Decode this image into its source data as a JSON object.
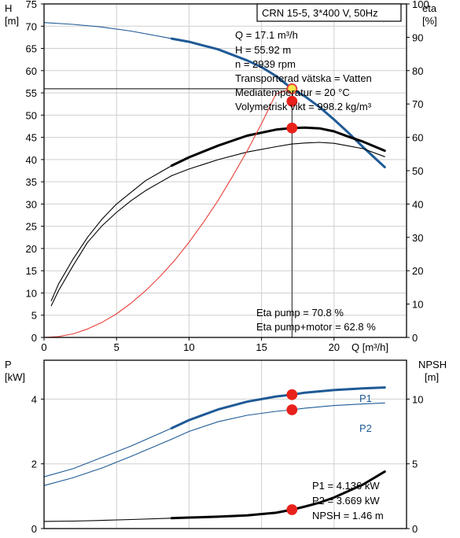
{
  "chart_data": [
    {
      "type": "line",
      "title": "CRN 15-5, 3*400 V, 50Hz",
      "y_axis_left": {
        "label_top": "H",
        "label_bottom": "[m]",
        "min": 0,
        "max": 75,
        "ticks": [
          "0",
          "5",
          "10",
          "15",
          "20",
          "25",
          "30",
          "35",
          "40",
          "45",
          "50",
          "55",
          "60",
          "65",
          "70",
          "75"
        ]
      },
      "y_axis_right": {
        "label_top": "eta",
        "label_bottom": "[%]",
        "min": 0,
        "max": 100,
        "ticks": [
          "0",
          "10",
          "20",
          "30",
          "40",
          "50",
          "60",
          "70",
          "80",
          "90",
          "100"
        ]
      },
      "x_axis": {
        "label": "Q [m³/h]",
        "min": 0,
        "max": 25,
        "ticks": [
          "0",
          "5",
          "10",
          "15",
          "20"
        ]
      },
      "grid": true,
      "info_lines": [
        "Q = 17.1 m³/h",
        "H = 55.92 m",
        "n = 2939 rpm",
        "Transporterad vätska = Vatten",
        "Mediatemperatur = 20 °C",
        "Volymetrisk vikt = 998.2 kg/m³"
      ],
      "eta_lines": [
        "Eta pump = 70.8 %",
        "Eta pump+motor = 62.8 %"
      ],
      "duty_point": {
        "Q": 17.1,
        "H": 55.92,
        "eta_pump": 70.8,
        "eta_total": 62.8
      },
      "series": [
        {
          "color": "#1f5a96",
          "axis": "left",
          "x": [
            0,
            2,
            4,
            6,
            8.8
          ],
          "y": [
            70.8,
            70.4,
            69.8,
            68.9,
            67.2
          ],
          "thin": true
        },
        {
          "color": "#1f5a96",
          "axis": "left",
          "x": [
            8.8,
            10,
            12,
            14,
            15,
            16,
            17.1,
            18,
            19,
            20,
            21,
            22,
            23.5
          ],
          "y": [
            67.2,
            66.5,
            64.8,
            62.3,
            60.8,
            58.8,
            55.92,
            54.2,
            51.8,
            49,
            46,
            42.8,
            38.3
          ],
          "thin": false
        },
        {
          "color": "#000000",
          "axis": "right",
          "x": [
            0.5,
            1,
            2,
            3,
            4,
            5,
            6,
            7,
            8,
            8.8
          ],
          "y": [
            11,
            16,
            23.5,
            30,
            35.5,
            40,
            43.5,
            47,
            49.5,
            51.5
          ],
          "thin": true
        },
        {
          "color": "#000000",
          "axis": "right",
          "x": [
            8.8,
            10,
            12,
            14,
            16,
            17.1,
            18,
            19,
            20,
            21,
            22,
            23.5
          ],
          "y": [
            51.5,
            54,
            57.5,
            60.5,
            62.3,
            62.8,
            62.9,
            62.7,
            61.8,
            60.2,
            58.7,
            56
          ],
          "thin": false
        },
        {
          "color": "#000000",
          "axis": "right",
          "x": [
            0.5,
            1,
            2,
            3,
            4,
            5,
            6,
            7,
            8,
            8.8
          ],
          "y": [
            9.5,
            14,
            21.5,
            28.5,
            33.5,
            37.5,
            41,
            44,
            46.5,
            48.5
          ],
          "thin": true
        },
        {
          "color": "#000000",
          "axis": "right",
          "x": [
            8.8,
            10,
            12,
            14,
            16,
            17.1,
            18,
            19,
            20,
            21,
            22,
            23.5
          ],
          "y": [
            48.5,
            50.5,
            53.3,
            55.6,
            57.2,
            58,
            58.3,
            58.5,
            58.2,
            57.4,
            56.6,
            54.2
          ],
          "thin": true
        },
        {
          "color": "#e8403a",
          "axis": "left",
          "x": [
            0,
            1,
            2,
            3,
            4,
            5,
            6,
            7,
            8,
            9,
            10,
            11,
            12,
            13,
            14,
            15,
            16,
            17.1
          ],
          "y": [
            0,
            0.2,
            0.8,
            1.9,
            3.4,
            5.3,
            7.7,
            10.5,
            13.7,
            17.3,
            21.4,
            25.9,
            30.8,
            36.2,
            41.9,
            48.1,
            54.8,
            55.92
          ],
          "thin": true
        }
      ],
      "points": [
        {
          "x": 17.1,
          "y": 55.92,
          "axis": "left",
          "color": "#f5e84a",
          "stroke": "#e53935"
        },
        {
          "x": 17.1,
          "y": 70.8,
          "axis": "right",
          "color": "#e8211b",
          "stroke": "#e8211b"
        },
        {
          "x": 17.1,
          "y": 62.8,
          "axis": "right",
          "color": "#e8211b",
          "stroke": "#e8211b"
        }
      ]
    },
    {
      "type": "line",
      "y_axis_left": {
        "label_top": "P",
        "label_bottom": "[kW]",
        "min": 0,
        "max": 5.2,
        "ticks": [
          "0",
          "2",
          "4"
        ]
      },
      "y_axis_right": {
        "label_top": "NPSH",
        "label_bottom": "[m]",
        "min": 0,
        "max": 13,
        "ticks": [
          "0",
          "5",
          "10"
        ]
      },
      "x_axis": {
        "min": 0,
        "max": 25
      },
      "grid": true,
      "info_lines": [
        "P1 = 4.136 kW",
        "P2 = 3.669 kW",
        "NPSH = 1.46 m"
      ],
      "series_labels": [
        "P1",
        "P2"
      ],
      "series": [
        {
          "name": "P1",
          "color": "#1f5a96",
          "axis": "left",
          "x": [
            0,
            2,
            4,
            6,
            8.8
          ],
          "y": [
            1.6,
            1.85,
            2.2,
            2.55,
            3.1
          ],
          "thin": true
        },
        {
          "name": "P1",
          "color": "#1f5a96",
          "axis": "left",
          "x": [
            8.8,
            10,
            12,
            14,
            16,
            17.1,
            18,
            20,
            22,
            23.5
          ],
          "y": [
            3.1,
            3.35,
            3.68,
            3.92,
            4.08,
            4.136,
            4.2,
            4.28,
            4.33,
            4.36
          ],
          "thin": false
        },
        {
          "name": "P2",
          "color": "#1f5a96",
          "axis": "left",
          "x": [
            0,
            2,
            4,
            6,
            8.8
          ],
          "y": [
            1.33,
            1.57,
            1.87,
            2.23,
            2.76
          ],
          "thin": true
        },
        {
          "name": "P2",
          "color": "#1f5a96",
          "axis": "left",
          "x": [
            8.8,
            10,
            12,
            14,
            16,
            17.1,
            18,
            20,
            22,
            23.5
          ],
          "y": [
            2.76,
            3.0,
            3.3,
            3.5,
            3.62,
            3.669,
            3.72,
            3.8,
            3.85,
            3.88
          ],
          "thin": true
        },
        {
          "name": "NPSH",
          "color": "#000000",
          "axis": "right",
          "x": [
            0,
            2,
            4,
            6,
            8.8
          ],
          "y": [
            0.55,
            0.58,
            0.63,
            0.7,
            0.8
          ],
          "thin": true
        },
        {
          "name": "NPSH",
          "color": "#000000",
          "axis": "right",
          "x": [
            8.8,
            10,
            12,
            14,
            16,
            17.1,
            18,
            19,
            20,
            21,
            22,
            23.5
          ],
          "y": [
            0.8,
            0.85,
            0.92,
            1.02,
            1.22,
            1.46,
            1.7,
            2.0,
            2.4,
            2.9,
            3.4,
            4.4
          ],
          "thin": false
        }
      ],
      "points": [
        {
          "x": 17.1,
          "y": 4.136,
          "axis": "left",
          "color": "#e8211b",
          "stroke": "#e8211b"
        },
        {
          "x": 17.1,
          "y": 3.669,
          "axis": "left",
          "color": "#e8211b",
          "stroke": "#e8211b"
        },
        {
          "x": 17.1,
          "y": 1.46,
          "axis": "right",
          "color": "#e8211b",
          "stroke": "#e8211b"
        }
      ]
    }
  ]
}
